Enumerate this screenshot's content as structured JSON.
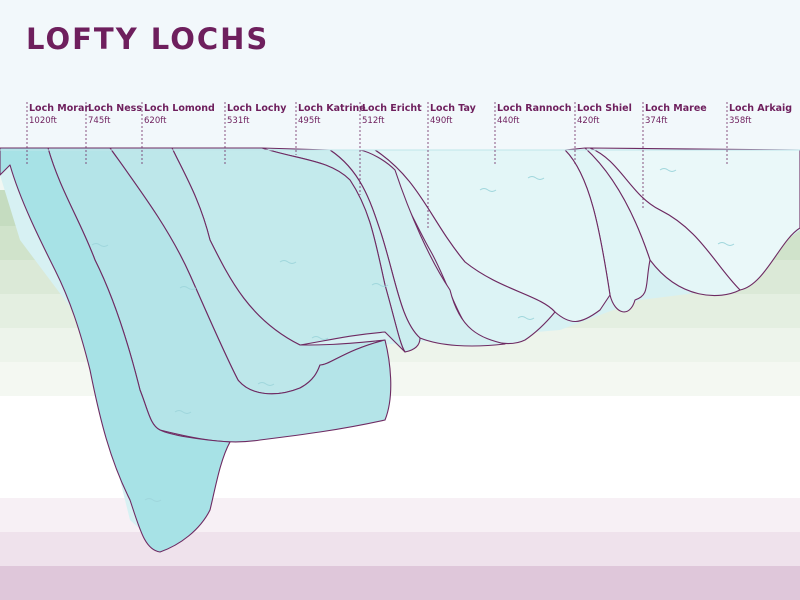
{
  "title": "LOFTY LOCHS",
  "colors": {
    "title": "#6e1f5d",
    "outline": "#6e2a62",
    "sky": "#f2f8fb",
    "water_surface": "#cdeef0"
  },
  "lochs": [
    {
      "name": "Loch Morar",
      "depth": "1020ft",
      "depth_ft": 1020
    },
    {
      "name": "Loch Ness",
      "depth": "745ft",
      "depth_ft": 745
    },
    {
      "name": "Loch Lomond",
      "depth": "620ft",
      "depth_ft": 620
    },
    {
      "name": "Loch Lochy",
      "depth": "531ft",
      "depth_ft": 531
    },
    {
      "name": "Loch Katrine",
      "depth": "495ft",
      "depth_ft": 495
    },
    {
      "name": "Loch Ericht",
      "depth": "512ft",
      "depth_ft": 512
    },
    {
      "name": "Loch Tay",
      "depth": "490ft",
      "depth_ft": 490
    },
    {
      "name": "Loch Rannoch",
      "depth": "440ft",
      "depth_ft": 440
    },
    {
      "name": "Loch Shiel",
      "depth": "420ft",
      "depth_ft": 420
    },
    {
      "name": "Loch Maree",
      "depth": "374ft",
      "depth_ft": 374
    },
    {
      "name": "Loch Arkaig",
      "depth": "358ft",
      "depth_ft": 358
    }
  ]
}
